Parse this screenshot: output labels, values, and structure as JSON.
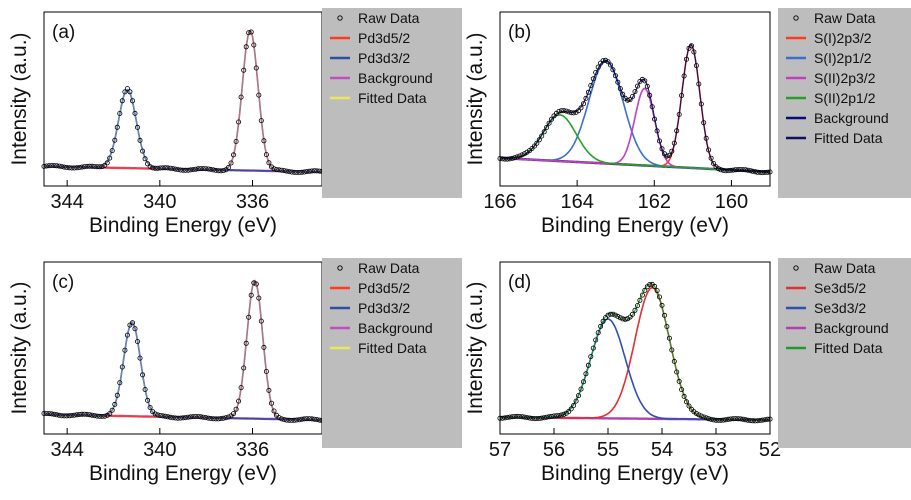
{
  "chart_data": [
    {
      "panel": "(a)",
      "type": "line",
      "xlabel": "Binding Energy (eV)",
      "ylabel": "Intensity (a.u.)",
      "xlim": [
        345,
        333
      ],
      "x_reversed": true,
      "xticks": [
        344,
        340,
        336
      ],
      "legend_placement": "right",
      "legend_entries": [
        "Raw Data",
        "Pd3d5/2",
        "Pd3d3/2",
        "Background",
        "Fitted Data"
      ],
      "peaks": [
        {
          "name": "Pd3d5/2",
          "center": 336.1,
          "height": 1.0,
          "fwhm": 0.8,
          "color": "#ff3b1f"
        },
        {
          "name": "Pd3d3/2",
          "center": 341.4,
          "height": 0.56,
          "fwhm": 0.9,
          "color": "#2f4fa3"
        }
      ],
      "background": {
        "name": "Background",
        "start": 0.04,
        "end": 0.0,
        "color": "#c04fc0"
      },
      "fit_color": "#e8e85a",
      "fit_edge": "#7a8fb0"
    },
    {
      "panel": "(b)",
      "type": "line",
      "xlabel": "Binding Energy (eV)",
      "ylabel": "Intensity (a.u.)",
      "xlim": [
        166,
        159
      ],
      "x_reversed": true,
      "xticks": [
        166,
        164,
        162,
        160
      ],
      "legend_placement": "right",
      "legend_entries": [
        "Raw Data",
        "S(I)2p3/2",
        "S(I)2p1/2",
        "S(II)2p3/2",
        "S(II)2p1/2",
        "Background",
        "Fitted Data"
      ],
      "peaks": [
        {
          "name": "S(I)2p3/2",
          "center": 161.05,
          "height": 0.88,
          "fwhm": 0.55,
          "color": "#ff3b1f"
        },
        {
          "name": "S(I)2p1/2",
          "center": 163.25,
          "height": 0.73,
          "fwhm": 1.05,
          "color": "#3a6fd0"
        },
        {
          "name": "S(II)2p3/2",
          "center": 162.25,
          "height": 0.55,
          "fwhm": 0.6,
          "color": "#c040c0"
        },
        {
          "name": "S(II)2p1/2",
          "center": 164.45,
          "height": 0.33,
          "fwhm": 1.0,
          "color": "#28a028"
        }
      ],
      "background": {
        "name": "Background",
        "start": 0.1,
        "end": 0.0,
        "color": "#0a0a7a"
      },
      "fit_color": "#101060",
      "fit_edge": "#101060"
    },
    {
      "panel": "(c)",
      "type": "line",
      "xlabel": "Binding Energy (eV)",
      "ylabel": "Intensity (a.u.)",
      "xlim": [
        345,
        333
      ],
      "x_reversed": true,
      "xticks": [
        344,
        340,
        336
      ],
      "legend_placement": "right",
      "legend_entries": [
        "Raw Data",
        "Pd3d5/2",
        "Pd3d3/2",
        "Background",
        "Fitted Data"
      ],
      "peaks": [
        {
          "name": "Pd3d5/2",
          "center": 335.9,
          "height": 1.0,
          "fwhm": 0.8,
          "color": "#ff3b1f"
        },
        {
          "name": "Pd3d3/2",
          "center": 341.2,
          "height": 0.68,
          "fwhm": 0.85,
          "color": "#2f4fa3"
        }
      ],
      "background": {
        "name": "Background",
        "start": 0.04,
        "end": 0.0,
        "color": "#c04fc0"
      },
      "fit_color": "#e8e85a",
      "fit_edge": "#7a8fb0"
    },
    {
      "panel": "(d)",
      "type": "line",
      "xlabel": "Binding Energy (eV)",
      "ylabel": "Intensity (a.u.)",
      "xlim": [
        57,
        52
      ],
      "x_reversed": true,
      "xticks": [
        57,
        56,
        55,
        54,
        53,
        52
      ],
      "legend_placement": "right",
      "legend_entries": [
        "Raw Data",
        "Se3d5/2",
        "Se3d3/2",
        "Background",
        "Fitted Data"
      ],
      "peaks": [
        {
          "name": "Se3d5/2",
          "center": 54.18,
          "height": 0.95,
          "fwhm": 0.75,
          "color": "#e03030"
        },
        {
          "name": "Se3d3/2",
          "center": 55.0,
          "height": 0.72,
          "fwhm": 0.75,
          "color": "#2f4fb3"
        }
      ],
      "background": {
        "name": "Background",
        "start": 0.02,
        "end": 0.0,
        "color": "#b040b0"
      },
      "fit_color": "#1f9a30",
      "fit_edge": "#1f9a30"
    }
  ]
}
